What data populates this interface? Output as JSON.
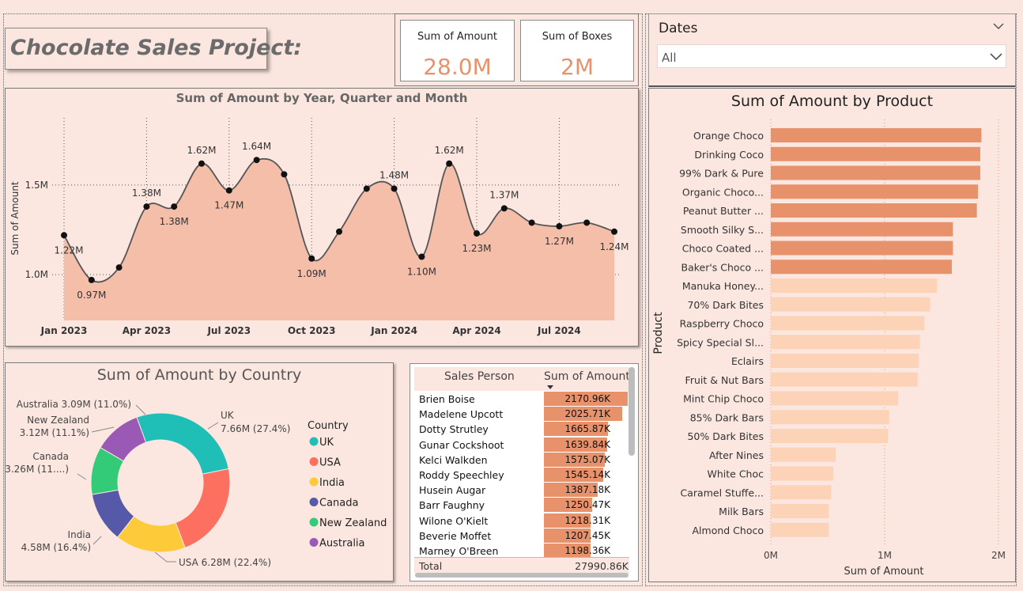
{
  "title": "Chocolate Sales Project:",
  "kpis": {
    "amount_label": "Sum of Amount",
    "amount_value": "28.0M",
    "boxes_label": "Sum of Boxes",
    "boxes_value": "2M"
  },
  "slicer": {
    "label": "Dates",
    "value": "All"
  },
  "colors": {
    "accent": "#e8926b",
    "accent_light": "#fdd3b8",
    "area_fill": "#f4bea9",
    "uk": "#1fbfb8",
    "usa": "#fd6f5f",
    "india": "#fdcb3a",
    "canada": "#5659a8",
    "new_zealand": "#33cb78",
    "australia": "#9b59b6"
  },
  "chart_data": [
    {
      "id": "line",
      "type": "area",
      "title": "Sum of Amount by Year, Quarter and Month",
      "ylabel": "Sum of Amount",
      "xlabel": "",
      "ylim": [
        0.74,
        1.8
      ],
      "yticks": [
        {
          "value": 1.0,
          "label": "1.0M"
        },
        {
          "value": 1.5,
          "label": "1.5M"
        }
      ],
      "xticks": [
        "Jan 2023",
        "Apr 2023",
        "Jul 2023",
        "Oct 2023",
        "Jan 2024",
        "Apr 2024",
        "Jul 2024"
      ],
      "x": [
        "2023-01",
        "2023-02",
        "2023-03",
        "2023-04",
        "2023-05",
        "2023-06",
        "2023-07",
        "2023-08",
        "2023-09",
        "2023-10",
        "2023-11",
        "2023-12",
        "2024-01",
        "2024-02",
        "2024-03",
        "2024-04",
        "2024-05",
        "2024-06",
        "2024-07",
        "2024-08",
        "2024-09"
      ],
      "values": [
        1.22,
        0.97,
        1.04,
        1.38,
        1.38,
        1.62,
        1.47,
        1.64,
        1.56,
        1.09,
        1.24,
        1.48,
        1.48,
        1.1,
        1.62,
        1.23,
        1.37,
        1.29,
        1.27,
        1.29,
        1.24
      ],
      "labels": [
        "1.22M",
        "0.97M",
        "",
        "1.38M",
        "1.38M",
        "1.62M",
        "1.47M",
        "1.64M",
        "",
        "1.09M",
        "",
        "",
        "1.48M",
        "1.10M",
        "1.62M",
        "1.23M",
        "1.37M",
        "",
        "1.27M",
        "",
        "1.24M"
      ]
    },
    {
      "id": "donut",
      "type": "pie",
      "title": "Sum of Amount by Country",
      "legend_title": "Country",
      "legend_position": "right",
      "slices": [
        {
          "name": "UK",
          "value": 7.66,
          "label1": "UK",
          "label2": "7.66M (27.4%)"
        },
        {
          "name": "USA",
          "value": 6.28,
          "label1": "USA 6.28M (22.4%)",
          "label2": ""
        },
        {
          "name": "India",
          "value": 4.58,
          "label1": "India",
          "label2": "4.58M (16.4%)"
        },
        {
          "name": "Canada",
          "value": 3.26,
          "label1": "Canada",
          "label2": "3.26M (11....)"
        },
        {
          "name": "New Zealand",
          "value": 3.12,
          "label1": "New Zealand",
          "label2": "3.12M (11.1%)"
        },
        {
          "name": "Australia",
          "value": 3.09,
          "label1": "Australia 3.09M (11.0%)",
          "label2": ""
        }
      ]
    },
    {
      "id": "table",
      "type": "table",
      "columns": [
        "Sales Person",
        "Sum of Amount"
      ],
      "rows": [
        {
          "name": "Brien Boise",
          "value": 2170.96,
          "label": "2170.96K"
        },
        {
          "name": "Madelene Upcott",
          "value": 2025.71,
          "label": "2025.71K"
        },
        {
          "name": "Dotty Strutley",
          "value": 1665.87,
          "label": "1665.87K"
        },
        {
          "name": "Gunar Cockshoot",
          "value": 1639.84,
          "label": "1639.84K"
        },
        {
          "name": "Kelci Walkden",
          "value": 1575.07,
          "label": "1575.07K"
        },
        {
          "name": "Roddy Speechley",
          "value": 1545.14,
          "label": "1545.14K"
        },
        {
          "name": "Husein Augar",
          "value": 1387.18,
          "label": "1387.18K"
        },
        {
          "name": "Barr Faughny",
          "value": 1250.47,
          "label": "1250.47K"
        },
        {
          "name": "Wilone O'Kielt",
          "value": 1218.31,
          "label": "1218.31K"
        },
        {
          "name": "Beverie Moffet",
          "value": 1207.45,
          "label": "1207.45K"
        },
        {
          "name": "Marney O'Breen",
          "value": 1198.36,
          "label": "1198.36K"
        }
      ],
      "total_label": "Total",
      "total_value": "27990.86K"
    },
    {
      "id": "bars",
      "type": "bar",
      "orientation": "horizontal",
      "title": "Sum of Amount by Product",
      "xlabel": "Sum of Amount",
      "ylabel": "Product",
      "xlim": [
        0,
        2.0
      ],
      "xticks": [
        {
          "value": 0,
          "label": "0M"
        },
        {
          "value": 1,
          "label": "1M"
        },
        {
          "value": 2,
          "label": "2M"
        }
      ],
      "categories": [
        "Orange Choco",
        "Drinking Coco",
        "99% Dark & Pure",
        "Organic Choco...",
        "Peanut Butter ...",
        "Smooth Silky S...",
        "Choco Coated ...",
        "Baker's Choco ...",
        "Manuka Honey...",
        "70% Dark Bites",
        "Raspberry Choco",
        "Spicy Special Sl...",
        "Eclairs",
        "Fruit & Nut Bars",
        "Mint Chip Choco",
        "85% Dark Bars",
        "50% Dark Bites",
        "After Nines",
        "White Choc",
        "Caramel Stuffe...",
        "Milk Bars",
        "Almond Choco"
      ],
      "values": [
        1.85,
        1.84,
        1.84,
        1.82,
        1.81,
        1.6,
        1.6,
        1.59,
        1.46,
        1.4,
        1.35,
        1.31,
        1.3,
        1.29,
        1.12,
        1.04,
        1.03,
        0.57,
        0.55,
        0.53,
        0.51,
        0.51
      ],
      "highlighted_count": 8
    }
  ]
}
